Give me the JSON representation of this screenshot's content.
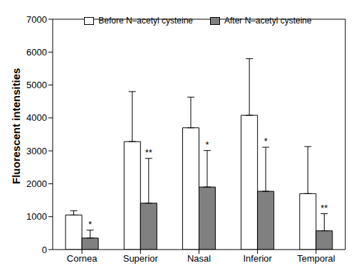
{
  "chart_data": {
    "type": "bar",
    "categories": [
      "Cornea",
      "Superior",
      "Nasal",
      "Inferior",
      "Temporal"
    ],
    "y_label": "Fluorescent intensities",
    "ylim": [
      0,
      7000
    ],
    "yticks": [
      0,
      1000,
      2000,
      3000,
      4000,
      5000,
      6000,
      7000
    ],
    "grid": false,
    "legend": "top",
    "series": [
      {
        "name": "Before N–acetyl cysteine",
        "color": "#ffffff",
        "values": [
          1050,
          3280,
          3700,
          4080,
          1700
        ],
        "errors": [
          130,
          1520,
          930,
          1720,
          1430
        ]
      },
      {
        "name": "After N–acetyl cysteine",
        "color": "#808080",
        "values": [
          350,
          1410,
          1900,
          1770,
          570
        ],
        "errors": [
          240,
          1360,
          1110,
          1340,
          520
        ],
        "significance": [
          "*",
          "**",
          "*",
          "*",
          "**"
        ]
      }
    ]
  }
}
